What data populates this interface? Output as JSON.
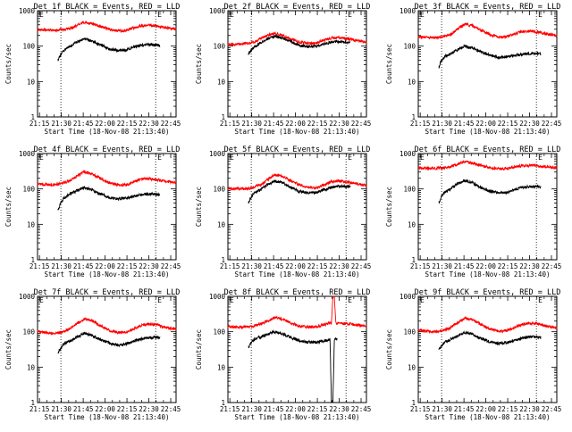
{
  "figure": {
    "shared": {
      "ylabel": "Counts/sec",
      "xlabel": "Start Time (18-Nov-08 21:13:40)",
      "x_ticks": [
        "21:15",
        "21:30",
        "21:45",
        "22:00",
        "22:15",
        "22:30",
        "22:45"
      ],
      "y_ticks": [
        "1",
        "10",
        "100",
        "1000"
      ],
      "left_marker": "E",
      "right_marker": "E",
      "colors": {
        "events": "#000000",
        "lld": "#ff0000",
        "axes": "#000000"
      }
    }
  },
  "chart_data": [
    {
      "type": "line",
      "title": "Det 1f BLACK = Events, RED = LLD",
      "x_unit": "minutes since 21:13:40",
      "ylog": true,
      "ylim": [
        1,
        1000
      ],
      "xlim": [
        0,
        95
      ],
      "event_lines": [
        16,
        81
      ],
      "series": [
        {
          "x": [
            0,
            10,
            16,
            22,
            27,
            32,
            37,
            43,
            49,
            55,
            61,
            66,
            71,
            76,
            81,
            86,
            90,
            95
          ],
          "values": [
            290,
            280,
            285,
            310,
            380,
            470,
            440,
            360,
            300,
            270,
            280,
            330,
            380,
            390,
            370,
            340,
            320,
            300
          ]
        },
        {
          "x": [
            14,
            16,
            18,
            22,
            27,
            32,
            37,
            43,
            49,
            55,
            61,
            66,
            71,
            76,
            81,
            84
          ],
          "values": [
            40,
            60,
            75,
            95,
            130,
            160,
            140,
            110,
            85,
            75,
            78,
            95,
            105,
            110,
            108,
            105
          ]
        }
      ]
    },
    {
      "type": "line",
      "title": "Det 2f BLACK = Events, RED = LLD",
      "x_unit": "minutes since 21:13:40",
      "ylog": true,
      "ylim": [
        1,
        1000
      ],
      "xlim": [
        0,
        95
      ],
      "event_lines": [
        16,
        81
      ],
      "series": [
        {
          "x": [
            0,
            8,
            14,
            18,
            22,
            27,
            32,
            37,
            43,
            49,
            55,
            61,
            66,
            71,
            76,
            81,
            86,
            90,
            95
          ],
          "values": [
            110,
            115,
            120,
            130,
            160,
            200,
            230,
            200,
            160,
            130,
            120,
            125,
            150,
            170,
            175,
            165,
            150,
            140,
            130
          ]
        },
        {
          "x": [
            14,
            16,
            18,
            22,
            27,
            32,
            37,
            43,
            49,
            55,
            61,
            66,
            71,
            76,
            81,
            84
          ],
          "values": [
            60,
            75,
            95,
            120,
            160,
            190,
            170,
            135,
            105,
            95,
            98,
            115,
            130,
            135,
            130,
            125
          ]
        }
      ]
    },
    {
      "type": "line",
      "title": "Det 3f BLACK = Events, RED = LLD",
      "x_unit": "minutes since 21:13:40",
      "ylog": true,
      "ylim": [
        1,
        1000
      ],
      "xlim": [
        0,
        95
      ],
      "event_lines": [
        16,
        81
      ],
      "series": [
        {
          "x": [
            0,
            10,
            16,
            22,
            27,
            32,
            37,
            43,
            49,
            55,
            61,
            66,
            71,
            76,
            81,
            86,
            90,
            95
          ],
          "values": [
            180,
            175,
            180,
            210,
            300,
            420,
            380,
            280,
            210,
            180,
            185,
            220,
            260,
            270,
            250,
            230,
            215,
            200
          ]
        },
        {
          "x": [
            14,
            16,
            18,
            22,
            27,
            32,
            37,
            43,
            49,
            55,
            61,
            66,
            71,
            76,
            81,
            84
          ],
          "values": [
            25,
            40,
            50,
            60,
            80,
            100,
            90,
            70,
            55,
            48,
            50,
            55,
            58,
            62,
            62,
            60
          ]
        }
      ]
    },
    {
      "type": "line",
      "title": "Det 4f BLACK = Events, RED = LLD",
      "x_unit": "minutes since 21:13:40",
      "ylog": true,
      "ylim": [
        1,
        1000
      ],
      "xlim": [
        0,
        95
      ],
      "event_lines": [
        16,
        81
      ],
      "series": [
        {
          "x": [
            0,
            10,
            16,
            22,
            27,
            32,
            37,
            43,
            49,
            55,
            61,
            66,
            71,
            76,
            81,
            86,
            90,
            95
          ],
          "values": [
            140,
            130,
            140,
            170,
            230,
            300,
            270,
            200,
            150,
            130,
            130,
            160,
            190,
            195,
            185,
            170,
            160,
            150
          ]
        },
        {
          "x": [
            14,
            16,
            18,
            22,
            27,
            32,
            37,
            43,
            49,
            55,
            61,
            66,
            71,
            76,
            81,
            84
          ],
          "values": [
            25,
            40,
            55,
            70,
            90,
            110,
            95,
            72,
            58,
            52,
            55,
            62,
            68,
            72,
            70,
            68
          ]
        }
      ]
    },
    {
      "type": "line",
      "title": "Det 5f BLACK = Events, RED = LLD",
      "x_unit": "minutes since 21:13:40",
      "ylog": true,
      "ylim": [
        1,
        1000
      ],
      "xlim": [
        0,
        95
      ],
      "event_lines": [
        16,
        81
      ],
      "series": [
        {
          "x": [
            0,
            10,
            16,
            22,
            27,
            32,
            37,
            43,
            49,
            55,
            61,
            66,
            71,
            76,
            81,
            86,
            90,
            95
          ],
          "values": [
            105,
            100,
            105,
            130,
            180,
            250,
            230,
            170,
            130,
            110,
            110,
            130,
            160,
            165,
            160,
            145,
            135,
            125
          ]
        },
        {
          "x": [
            14,
            16,
            18,
            22,
            27,
            32,
            37,
            43,
            49,
            55,
            61,
            66,
            71,
            76,
            81,
            84
          ],
          "values": [
            40,
            60,
            75,
            95,
            130,
            170,
            150,
            110,
            85,
            78,
            80,
            95,
            110,
            120,
            118,
            115
          ]
        }
      ]
    },
    {
      "type": "line",
      "title": "Det 6f BLACK = Events, RED = LLD",
      "x_unit": "minutes since 21:13:40",
      "ylog": true,
      "ylim": [
        1,
        1000
      ],
      "xlim": [
        0,
        95
      ],
      "event_lines": [
        16,
        81
      ],
      "series": [
        {
          "x": [
            0,
            10,
            16,
            22,
            27,
            32,
            37,
            43,
            49,
            55,
            61,
            66,
            71,
            76,
            81,
            86,
            90,
            95
          ],
          "values": [
            400,
            380,
            390,
            420,
            500,
            580,
            540,
            460,
            400,
            370,
            375,
            420,
            450,
            460,
            450,
            430,
            410,
            400
          ]
        },
        {
          "x": [
            14,
            16,
            18,
            22,
            27,
            32,
            37,
            43,
            49,
            55,
            61,
            66,
            71,
            76,
            81,
            84
          ],
          "values": [
            40,
            65,
            80,
            100,
            140,
            170,
            150,
            110,
            85,
            78,
            80,
            95,
            110,
            115,
            115,
            112
          ]
        }
      ]
    },
    {
      "type": "line",
      "title": "Det 7f BLACK = Events, RED = LLD",
      "x_unit": "minutes since 21:13:40",
      "ylog": true,
      "ylim": [
        1,
        1000
      ],
      "xlim": [
        0,
        95
      ],
      "event_lines": [
        16,
        81
      ],
      "series": [
        {
          "x": [
            0,
            10,
            16,
            22,
            27,
            32,
            37,
            43,
            49,
            55,
            61,
            66,
            71,
            76,
            81,
            86,
            90,
            95
          ],
          "values": [
            100,
            90,
            95,
            120,
            170,
            230,
            210,
            150,
            110,
            95,
            98,
            120,
            150,
            165,
            160,
            140,
            125,
            115
          ]
        },
        {
          "x": [
            14,
            16,
            18,
            22,
            27,
            32,
            37,
            43,
            49,
            55,
            61,
            66,
            71,
            76,
            81,
            84
          ],
          "values": [
            25,
            35,
            45,
            55,
            70,
            90,
            80,
            60,
            48,
            42,
            45,
            55,
            62,
            68,
            70,
            68
          ]
        }
      ]
    },
    {
      "type": "line",
      "title": "Det 8f BLACK = Events, RED = LLD",
      "x_unit": "minutes since 21:13:40",
      "ylog": true,
      "ylim": [
        1,
        1000
      ],
      "xlim": [
        0,
        95
      ],
      "event_lines": [
        16,
        81
      ],
      "series": [
        {
          "x": [
            0,
            10,
            16,
            22,
            27,
            32,
            37,
            43,
            49,
            55,
            61,
            66,
            71,
            72,
            73,
            74,
            76,
            81,
            86,
            90,
            95
          ],
          "values": [
            140,
            135,
            140,
            160,
            200,
            250,
            230,
            180,
            145,
            135,
            140,
            160,
            180,
            1000,
            1000,
            180,
            175,
            170,
            160,
            150,
            145
          ]
        },
        {
          "x": [
            14,
            16,
            18,
            22,
            27,
            32,
            37,
            43,
            49,
            55,
            61,
            66,
            70,
            71,
            72,
            73,
            75
          ],
          "values": [
            35,
            50,
            60,
            70,
            85,
            100,
            90,
            70,
            55,
            50,
            50,
            55,
            60,
            1,
            1,
            60,
            62
          ]
        }
      ]
    },
    {
      "type": "line",
      "title": "Det 9f BLACK = Events, RED = LLD",
      "x_unit": "minutes since 21:13:40",
      "ylog": true,
      "ylim": [
        1,
        1000
      ],
      "xlim": [
        0,
        95
      ],
      "event_lines": [
        16,
        81
      ],
      "series": [
        {
          "x": [
            0,
            10,
            16,
            22,
            27,
            32,
            37,
            43,
            49,
            55,
            61,
            66,
            71,
            76,
            81,
            86,
            90,
            95
          ],
          "values": [
            110,
            100,
            105,
            130,
            180,
            240,
            220,
            160,
            120,
            105,
            108,
            130,
            160,
            175,
            170,
            150,
            140,
            130
          ]
        },
        {
          "x": [
            14,
            16,
            18,
            22,
            27,
            32,
            37,
            43,
            49,
            55,
            61,
            66,
            71,
            76,
            81,
            84
          ],
          "values": [
            30,
            40,
            50,
            60,
            78,
            95,
            85,
            65,
            52,
            47,
            50,
            58,
            66,
            72,
            72,
            70
          ]
        }
      ]
    }
  ]
}
